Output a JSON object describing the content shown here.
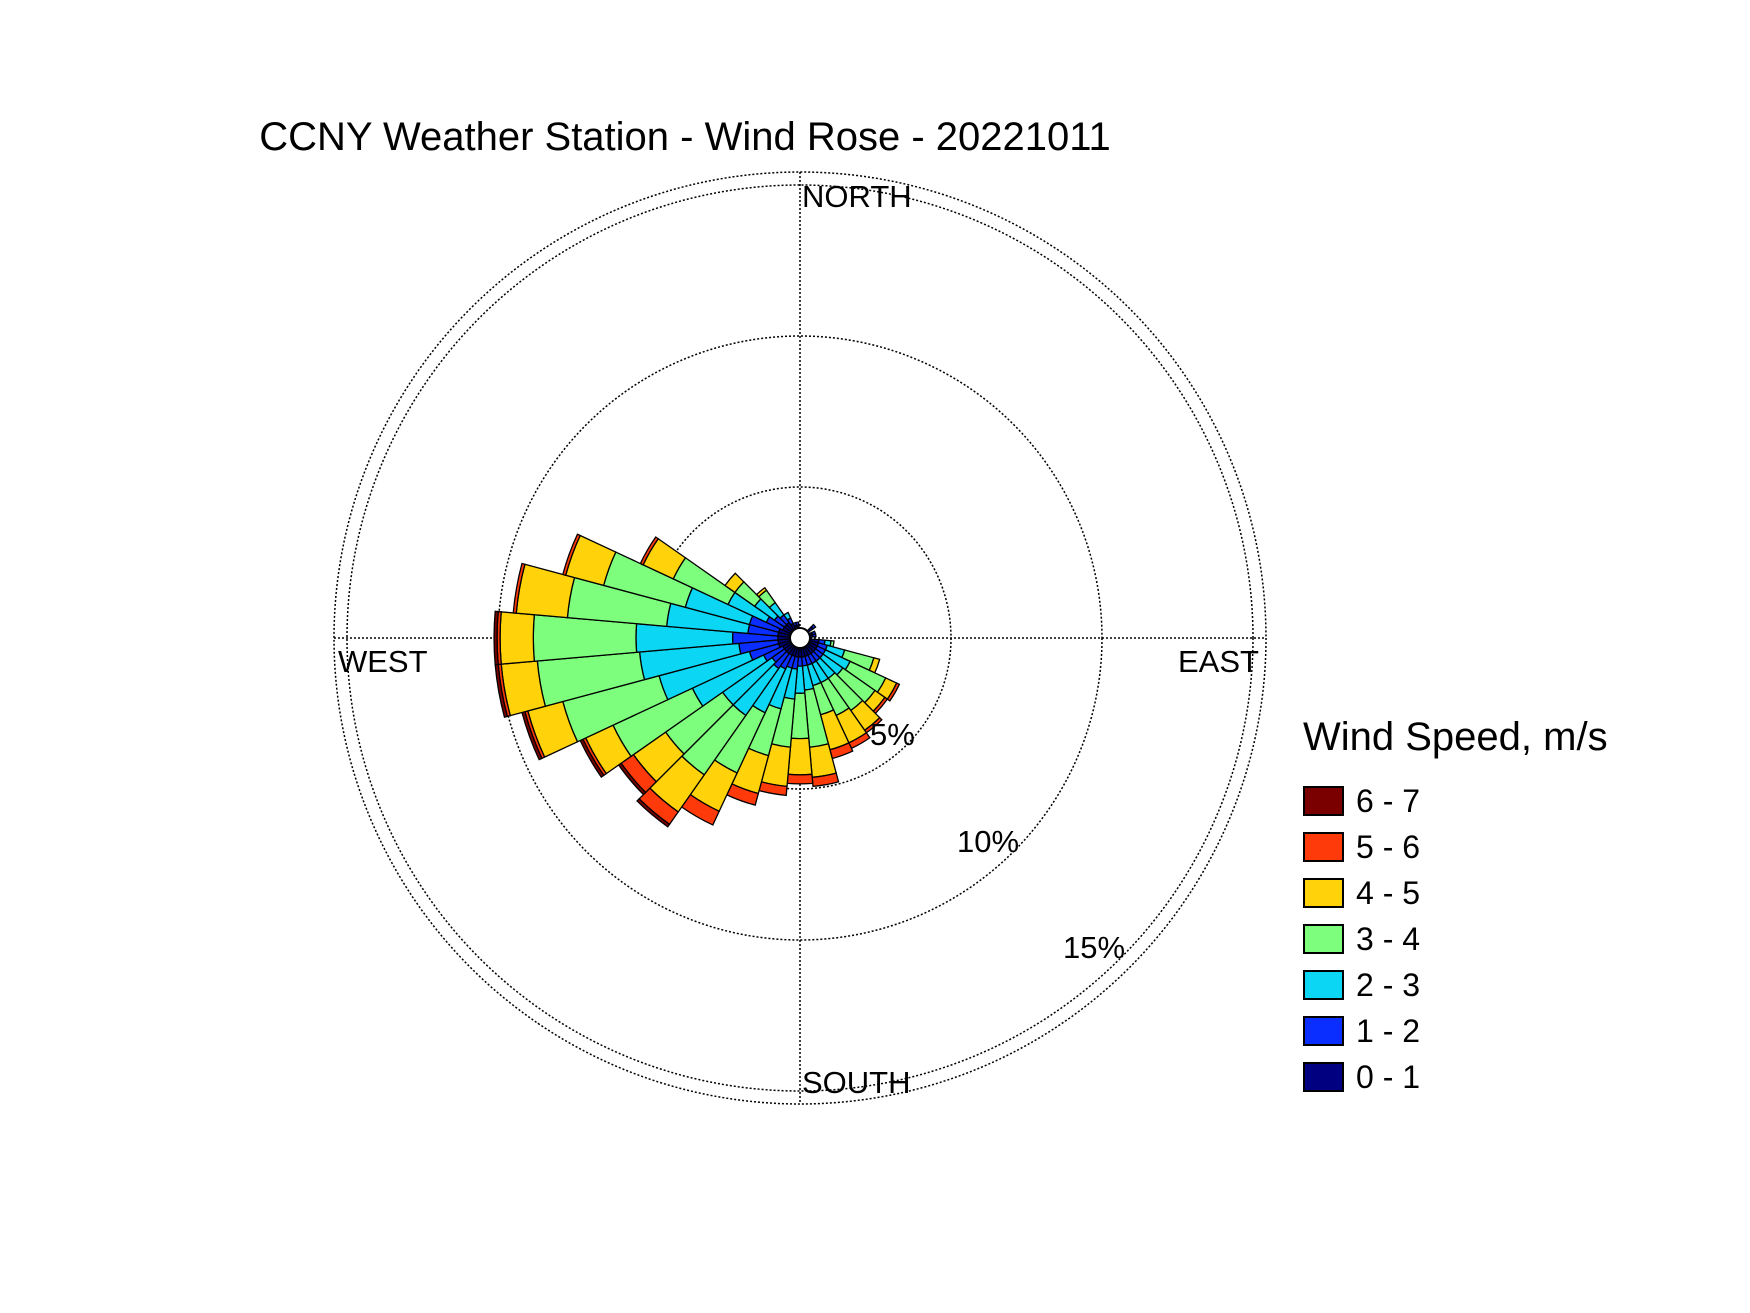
{
  "chart_data": {
    "type": "polar-bar",
    "title": "CCNY Weather Station - Wind Rose - 20221011",
    "direction_labels": {
      "north": "NORTH",
      "east": "EAST",
      "south": "SOUTH",
      "west": "WEST"
    },
    "ring_values": [
      5,
      10,
      15
    ],
    "ring_labels": [
      "5%",
      "10%",
      "15%"
    ],
    "legend_title": "Wind Speed, m/s",
    "bins": [
      {
        "label": "0 - 1",
        "color": "#000080"
      },
      {
        "label": "1 - 2",
        "color": "#0a2eff"
      },
      {
        "label": "2 - 3",
        "color": "#0bd6f4"
      },
      {
        "label": "3 - 4",
        "color": "#7dff7d"
      },
      {
        "label": "4 - 5",
        "color": "#ffd20a"
      },
      {
        "label": "5 - 6",
        "color": "#ff3a0a"
      },
      {
        "label": "6 - 7",
        "color": "#7a0000"
      }
    ],
    "sector_width_deg": 10,
    "sectors": [
      {
        "dir": 50,
        "values": [
          0.2,
          0.1,
          0,
          0,
          0,
          0,
          0
        ]
      },
      {
        "dir": 70,
        "values": [
          0.1,
          0.1,
          0,
          0,
          0,
          0,
          0
        ]
      },
      {
        "dir": 80,
        "values": [
          0.1,
          0.1,
          0,
          0,
          0,
          0,
          0
        ]
      },
      {
        "dir": 100,
        "values": [
          0.3,
          0.2,
          0.2,
          0.1,
          0,
          0,
          0
        ]
      },
      {
        "dir": 110,
        "values": [
          0.3,
          0.3,
          0.6,
          1.0,
          0.2,
          0,
          0
        ]
      },
      {
        "dir": 120,
        "values": [
          0.3,
          0.3,
          0.9,
          1.3,
          0.4,
          0.1,
          0
        ]
      },
      {
        "dir": 130,
        "values": [
          0.3,
          0.3,
          0.8,
          1.3,
          0.4,
          0.1,
          0
        ]
      },
      {
        "dir": 140,
        "values": [
          0.3,
          0.3,
          0.7,
          1.3,
          0.8,
          0.1,
          0
        ]
      },
      {
        "dir": 150,
        "values": [
          0.3,
          0.3,
          0.7,
          1.2,
          1.0,
          0.2,
          0
        ]
      },
      {
        "dir": 160,
        "values": [
          0.3,
          0.3,
          0.7,
          1.0,
          1.2,
          0.3,
          0
        ]
      },
      {
        "dir": 170,
        "values": [
          0.3,
          0.3,
          0.8,
          1.9,
          1.0,
          0.3,
          0
        ]
      },
      {
        "dir": 180,
        "values": [
          0.3,
          0.3,
          0.9,
          1.5,
          1.2,
          0.3,
          0
        ]
      },
      {
        "dir": 190,
        "values": [
          0.3,
          0.4,
          1.0,
          1.6,
          1.3,
          0.3,
          0
        ]
      },
      {
        "dir": 200,
        "values": [
          0.3,
          0.4,
          1.4,
          1.6,
          1.3,
          0.4,
          0
        ]
      },
      {
        "dir": 210,
        "values": [
          0.3,
          0.5,
          1.6,
          2.2,
          1.4,
          0.5,
          0
        ]
      },
      {
        "dir": 220,
        "values": [
          0.3,
          0.6,
          1.9,
          2.4,
          1.5,
          0.5,
          0.1
        ]
      },
      {
        "dir": 230,
        "values": [
          0.3,
          0.5,
          2.0,
          2.3,
          1.3,
          0.5,
          0.1
        ]
      },
      {
        "dir": 240,
        "values": [
          0.3,
          0.7,
          2.6,
          2.9,
          1.0,
          0.1,
          0.1
        ]
      },
      {
        "dir": 250,
        "values": [
          0.4,
          1.0,
          3.1,
          3.3,
          1.2,
          0.1,
          0.1
        ]
      },
      {
        "dir": 260,
        "values": [
          0.4,
          1.3,
          3.3,
          3.4,
          1.2,
          0.1,
          0.1
        ]
      },
      {
        "dir": 270,
        "values": [
          0.4,
          1.5,
          3.2,
          3.4,
          1.1,
          0.1,
          0.1
        ]
      },
      {
        "dir": 280,
        "values": [
          0.4,
          1.0,
          2.7,
          3.3,
          1.7,
          0.1,
          0
        ]
      },
      {
        "dir": 290,
        "values": [
          0.4,
          1.0,
          2.2,
          2.8,
          1.3,
          0.1,
          0
        ]
      },
      {
        "dir": 300,
        "values": [
          0.3,
          0.6,
          1.4,
          2.0,
          1.1,
          0.1,
          0
        ]
      },
      {
        "dir": 310,
        "values": [
          0.3,
          0.4,
          0.8,
          0.8,
          0.4,
          0,
          0
        ]
      },
      {
        "dir": 320,
        "values": [
          0.3,
          0.3,
          0.5,
          0.5,
          0.1,
          0,
          0
        ]
      },
      {
        "dir": 330,
        "values": [
          0.2,
          0.2,
          0.2,
          0,
          0,
          0,
          0
        ]
      },
      {
        "dir": 340,
        "values": [
          0.1,
          0.1,
          0,
          0,
          0,
          0,
          0
        ]
      },
      {
        "dir": 350,
        "values": [
          0.1,
          0.1,
          0,
          0,
          0,
          0,
          0
        ]
      }
    ]
  }
}
